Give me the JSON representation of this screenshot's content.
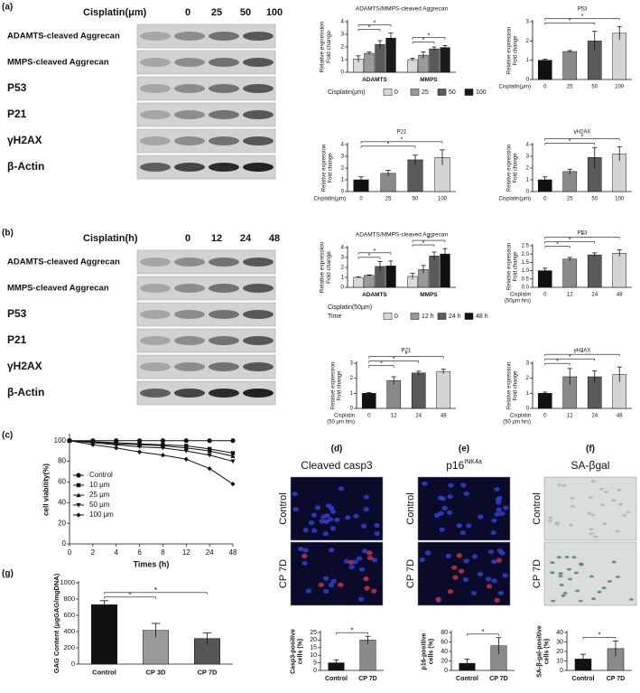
{
  "blots": [
    {
      "panel": "(a)",
      "header": "Cisplatin(μm)",
      "lanes": [
        "0",
        "25",
        "50",
        "100"
      ],
      "rows": [
        "ADAMTS-cleaved Aggrecan",
        "MMPS-cleaved Aggrecan",
        "P53",
        "P21",
        "γH2AX",
        "β-Actin"
      ]
    },
    {
      "panel": "(b)",
      "header": "Cisplatin(h)",
      "lanes": [
        "0",
        "12",
        "24",
        "48"
      ],
      "rows": [
        "ADAMTS-cleaved Aggrecan",
        "MMPS-cleaved Aggrecan",
        "P53",
        "P21",
        "γH2AX",
        "β-Actin"
      ]
    }
  ],
  "chart_data": [
    {
      "type": "grouped_bar",
      "title": "ADAMTS/MMPS-cleaved Aggrecan",
      "ylabel": [
        "Relative expression",
        "Fold change"
      ],
      "categories": [
        "ADAMTS",
        "MMPS"
      ],
      "legend": "bottom",
      "legend_title": [
        "Cisplatin(μm)"
      ],
      "series": [
        {
          "name": "0",
          "color": "#d9d9d9",
          "values": [
            1.05,
            1.0
          ],
          "errors": [
            0.25,
            0.1
          ]
        },
        {
          "name": "25",
          "color": "#9a9a9a",
          "values": [
            1.5,
            1.35
          ],
          "errors": [
            0.1,
            0.25
          ]
        },
        {
          "name": "50",
          "color": "#5a5a5a",
          "values": [
            2.2,
            1.85
          ],
          "errors": [
            0.3,
            0.15
          ]
        },
        {
          "name": "100",
          "color": "#1a1a1a",
          "values": [
            2.7,
            1.95
          ],
          "errors": [
            0.4,
            0.15
          ]
        }
      ],
      "ylim": [
        0,
        4
      ],
      "yticks": [
        0,
        1,
        2,
        3,
        4
      ],
      "brackets": [
        {
          "label": "*",
          "group": 0,
          "to": 2
        },
        {
          "label": "*",
          "group": 0,
          "to": 3
        },
        {
          "label": "*",
          "group": 1,
          "to": 2
        },
        {
          "label": "*",
          "group": 1,
          "to": 3
        }
      ]
    },
    {
      "type": "bar",
      "title": "P53",
      "ylabel": [
        "Relative expression",
        "Fold change"
      ],
      "xlabel": [
        "Cisplatin(μm)"
      ],
      "categories": [
        "0",
        "25",
        "50",
        "100"
      ],
      "values": [
        1.0,
        1.45,
        2.0,
        2.4
      ],
      "errors": [
        0.05,
        0.05,
        0.5,
        0.35
      ],
      "colors": [
        "#111111",
        "#8a8a8a",
        "#5a5a5a",
        "#d4d4d4"
      ],
      "ylim": [
        0,
        3
      ],
      "yticks": [
        0,
        1,
        2,
        3
      ],
      "brackets": [
        {
          "label": "*",
          "to": 2
        },
        {
          "label": "*",
          "to": 3
        }
      ]
    },
    {
      "type": "bar",
      "title": "P21",
      "ylabel": [
        "Relative expression",
        "Fold change"
      ],
      "xlabel": [
        "Cisplatin(μm)"
      ],
      "categories": [
        "0",
        "25",
        "50",
        "100"
      ],
      "values": [
        1.0,
        1.55,
        2.7,
        2.9
      ],
      "errors": [
        0.25,
        0.25,
        0.4,
        0.65
      ],
      "colors": [
        "#111111",
        "#8a8a8a",
        "#5a5a5a",
        "#d4d4d4"
      ],
      "ylim": [
        0,
        4
      ],
      "yticks": [
        0,
        1,
        2,
        3,
        4
      ],
      "brackets": [
        {
          "label": "*",
          "to": 2
        },
        {
          "label": "*",
          "to": 3
        }
      ]
    },
    {
      "type": "bar",
      "title": "γH2AX",
      "ylabel": [
        "Relative expression",
        "Fold change"
      ],
      "xlabel": [
        "Cisplatin(μm)"
      ],
      "categories": [
        "0",
        "25",
        "50",
        "100"
      ],
      "values": [
        1.0,
        1.7,
        2.9,
        3.2
      ],
      "errors": [
        0.25,
        0.2,
        0.85,
        0.6
      ],
      "colors": [
        "#111111",
        "#8a8a8a",
        "#5a5a5a",
        "#d4d4d4"
      ],
      "ylim": [
        0,
        4
      ],
      "yticks": [
        0,
        1,
        2,
        3,
        4
      ],
      "brackets": [
        {
          "label": "*",
          "to": 2
        },
        {
          "label": "*",
          "to": 3
        }
      ]
    },
    {
      "type": "grouped_bar",
      "title": "ADAMTS/MMPS-cleaved Aggrecan",
      "ylabel": [
        "Relative expression",
        "Fold change"
      ],
      "categories": [
        "ADAMTS",
        "MMPS"
      ],
      "legend": "bottom",
      "legend_title": [
        "Cisplatin(50μm)",
        "Time"
      ],
      "series": [
        {
          "name": "0",
          "color": "#d9d9d9",
          "values": [
            1.0,
            1.1
          ],
          "errors": [
            0.05,
            0.3
          ]
        },
        {
          "name": "12 h",
          "color": "#9a9a9a",
          "values": [
            1.2,
            1.8
          ],
          "errors": [
            0.05,
            0.4
          ]
        },
        {
          "name": "24 h",
          "color": "#5a5a5a",
          "values": [
            2.1,
            3.15
          ],
          "errors": [
            0.5,
            0.4
          ]
        },
        {
          "name": "48 h",
          "color": "#111111",
          "values": [
            2.15,
            3.35
          ],
          "errors": [
            0.5,
            0.55
          ]
        }
      ],
      "ylim": [
        0,
        4
      ],
      "yticks": [
        0,
        1,
        2,
        3,
        4
      ],
      "brackets": [
        {
          "label": "*",
          "group": 0,
          "to": 2
        },
        {
          "label": "*",
          "group": 0,
          "to": 3
        },
        {
          "label": "*",
          "group": 1,
          "to": 2
        },
        {
          "label": "*",
          "group": 1,
          "to": 3
        }
      ]
    },
    {
      "type": "bar",
      "title": "P53",
      "ylabel": [
        "Relative expression",
        "Fold change"
      ],
      "xlabel": [
        "Cisplatin",
        "(50μm hrs)"
      ],
      "categories": [
        "0",
        "12",
        "24",
        "48"
      ],
      "values": [
        1.0,
        1.7,
        1.95,
        2.05
      ],
      "errors": [
        0.15,
        0.1,
        0.12,
        0.2
      ],
      "colors": [
        "#111111",
        "#8a8a8a",
        "#5a5a5a",
        "#d4d4d4"
      ],
      "ylim": [
        0,
        2.5
      ],
      "yticks": [
        {
          "value": 0,
          "label": "0.0"
        },
        {
          "value": 0.5,
          "label": "0.5"
        },
        {
          "value": 1,
          "label": "1.0"
        },
        {
          "value": 1.5,
          "label": "1.5"
        },
        {
          "value": 2,
          "label": "2.0"
        },
        2.5
      ],
      "brackets": [
        {
          "label": "*",
          "to": 1
        },
        {
          "label": "*",
          "to": 2
        },
        {
          "label": "*",
          "to": 3
        }
      ]
    },
    {
      "type": "bar",
      "title": "P21",
      "ylabel": [
        "Relative expression",
        "Fold change"
      ],
      "xlabel": [
        "Cisplatin",
        "(50  μm hrs)"
      ],
      "categories": [
        "0",
        "12",
        "24",
        "48"
      ],
      "values": [
        1.0,
        1.85,
        2.35,
        2.45
      ],
      "errors": [
        0.05,
        0.25,
        0.12,
        0.15
      ],
      "colors": [
        "#111111",
        "#8a8a8a",
        "#5a5a5a",
        "#d4d4d4"
      ],
      "ylim": [
        0,
        3
      ],
      "yticks": [
        0,
        1,
        2,
        3
      ],
      "brackets": [
        {
          "label": "*",
          "to": 1
        },
        {
          "label": "*",
          "to": 2
        },
        {
          "label": "*",
          "to": 3
        }
      ]
    },
    {
      "type": "bar",
      "title": "γH2AX",
      "ylabel": [
        "Relative expression",
        "Fold change"
      ],
      "xlabel": [
        "Cisplatin",
        "(50  μm hrs)"
      ],
      "categories": [
        "0",
        "12",
        "24",
        "48"
      ],
      "values": [
        1.0,
        2.1,
        2.1,
        2.25
      ],
      "errors": [
        0.08,
        0.55,
        0.4,
        0.5
      ],
      "colors": [
        "#111111",
        "#8a8a8a",
        "#5a5a5a",
        "#d4d4d4"
      ],
      "ylim": [
        0,
        3
      ],
      "yticks": [
        0,
        1,
        2,
        3
      ],
      "brackets": [
        {
          "label": "*",
          "to": 1
        },
        {
          "label": "*",
          "to": 2
        },
        {
          "label": "*",
          "to": 3
        }
      ]
    },
    {
      "type": "line",
      "panel": "(c)",
      "ylabel": "cell viability(%)",
      "xlabel": "Times (h)",
      "legend": "left",
      "categories": [
        "0",
        "2",
        "4",
        "6",
        "8",
        "12",
        "24",
        "48"
      ],
      "series": [
        {
          "name": "Control",
          "color": "#111111",
          "marker": "circle",
          "values": [
            100,
            100,
            100,
            100,
            100,
            100,
            100,
            100
          ]
        },
        {
          "name": "10 μm",
          "color": "#111111",
          "marker": "square",
          "values": [
            100,
            99,
            98,
            97,
            96,
            95,
            92,
            88
          ]
        },
        {
          "name": "25 μm",
          "color": "#111111",
          "marker": "triangle",
          "values": [
            100,
            99,
            97,
            96,
            95,
            93,
            90,
            85
          ]
        },
        {
          "name": "50 μm",
          "color": "#111111",
          "marker": "triangle-down",
          "values": [
            100,
            98,
            96,
            94,
            93,
            90,
            86,
            80
          ]
        },
        {
          "name": "100 μm",
          "color": "#111111",
          "marker": "diamond",
          "values": [
            100,
            96,
            93,
            89,
            86,
            82,
            73,
            58
          ]
        }
      ],
      "ylim": [
        0,
        105
      ],
      "yticks": [
        0,
        20,
        40,
        60,
        80,
        100
      ]
    },
    {
      "type": "bar",
      "panel": "(d)",
      "image_title": "Cleaved casp3",
      "image_labels": [
        "Control",
        "CP 7D"
      ],
      "ylabel": [
        "Casp3-positive",
        "cells (%)"
      ],
      "categories": [
        "Control",
        "CP 7D"
      ],
      "values": [
        5,
        20
      ],
      "errors": [
        2,
        2.5
      ],
      "colors": [
        "#111111",
        "#8a8a8a"
      ],
      "ylim": [
        0,
        25
      ],
      "yticks": [
        0,
        5,
        10,
        15,
        20,
        25
      ],
      "brackets": [
        {
          "label": "*",
          "to": 1
        }
      ]
    },
    {
      "type": "bar",
      "panel": "(e)",
      "image_title": "p16",
      "image_title_sup": "INK4a",
      "image_labels": [
        "Control",
        "CP 7D"
      ],
      "ylabel": [
        "p16-positive",
        "cells (%)"
      ],
      "categories": [
        "Control",
        "CP 7D"
      ],
      "values": [
        15,
        52
      ],
      "errors": [
        9,
        17
      ],
      "colors": [
        "#111111",
        "#8a8a8a"
      ],
      "ylim": [
        0,
        80
      ],
      "yticks": [
        0,
        20,
        40,
        60,
        80
      ],
      "brackets": [
        {
          "label": "*",
          "to": 1
        }
      ]
    },
    {
      "type": "bar",
      "panel": "(f)",
      "image_title": "SA-βgal",
      "image_labels": [
        "Control",
        "CP 7D"
      ],
      "ylabel": [
        "SA-β-gal-positive",
        "cells (%)"
      ],
      "categories": [
        "Control",
        "CP 7D"
      ],
      "values": [
        12,
        23
      ],
      "errors": [
        5,
        8
      ],
      "colors": [
        "#111111",
        "#8a8a8a"
      ],
      "ylim": [
        0,
        40
      ],
      "yticks": [
        0,
        10,
        20,
        30,
        40
      ],
      "brackets": [
        {
          "label": "*",
          "to": 1
        }
      ]
    },
    {
      "type": "bar",
      "panel": "(g)",
      "ylabel": [
        "GAG Content (μgGAG/mgDNA)"
      ],
      "categories": [
        "Control",
        "CP 3D",
        "CP 7D"
      ],
      "values": [
        730,
        415,
        315
      ],
      "errors": [
        50,
        85,
        70
      ],
      "colors": [
        "#111111",
        "#9a9a9a",
        "#555555"
      ],
      "ylim": [
        0,
        1000
      ],
      "yticks": [
        0,
        200,
        400,
        600,
        800,
        1000
      ],
      "brackets": [
        {
          "label": "*",
          "to": 1
        },
        {
          "label": "*",
          "to": 2
        }
      ]
    }
  ]
}
